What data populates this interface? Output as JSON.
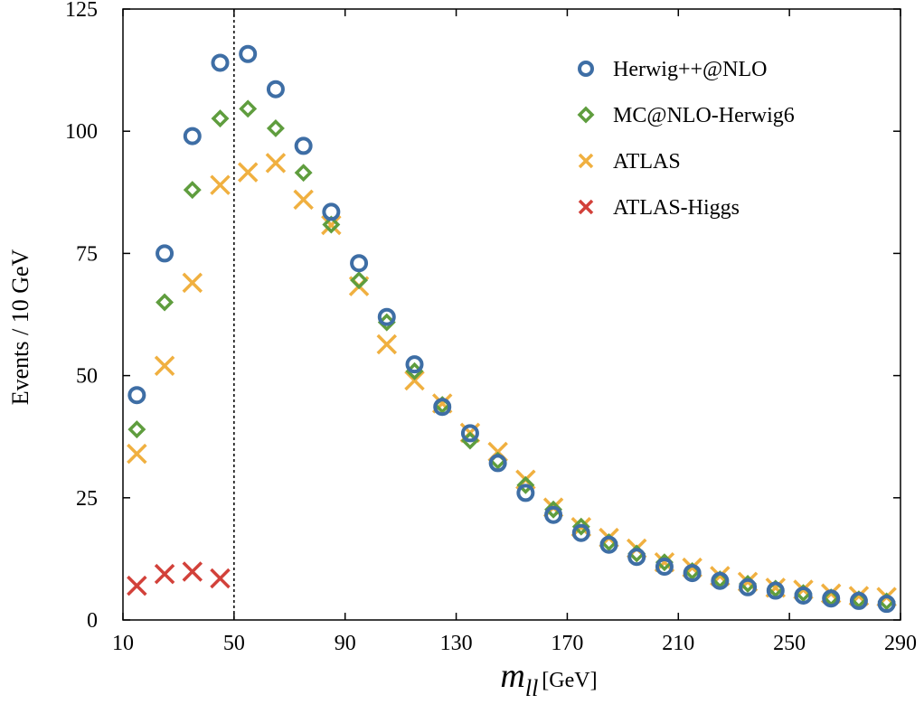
{
  "chart_data": {
    "type": "scatter",
    "xlabel_main": "m",
    "xlabel_sub": "ll",
    "xlabel_unit": "[GeV]",
    "ylabel": "Events / 10 GeV",
    "xlim": [
      10,
      290
    ],
    "ylim": [
      0,
      125
    ],
    "xticks": [
      10,
      50,
      90,
      130,
      170,
      210,
      250,
      290
    ],
    "yticks": [
      0,
      25,
      50,
      75,
      100,
      125
    ],
    "cut_line_x": 50,
    "legend_position": "top-right",
    "series": [
      {
        "name": "Herwig++@NLO",
        "marker": "circle",
        "color": "#3e6ea5",
        "x": [
          15,
          25,
          35,
          45,
          55,
          65,
          75,
          85,
          95,
          105,
          115,
          125,
          135,
          145,
          155,
          165,
          175,
          185,
          195,
          205,
          215,
          225,
          235,
          245,
          255,
          265,
          275,
          285
        ],
        "y": [
          46,
          75,
          99,
          114,
          115.8,
          108.6,
          97,
          83.5,
          73,
          62,
          52.3,
          43.6,
          38.2,
          32.1,
          26,
          21.5,
          17.8,
          15.4,
          12.9,
          10.9,
          9.6,
          8,
          6.7,
          6,
          5,
          4.4,
          3.9,
          3.3
        ]
      },
      {
        "name": "MC@NLO-Herwig6",
        "marker": "diamond",
        "color": "#5f9d3e",
        "x": [
          15,
          25,
          35,
          45,
          55,
          65,
          75,
          85,
          95,
          105,
          115,
          125,
          135,
          145,
          155,
          165,
          175,
          185,
          195,
          205,
          215,
          225,
          235,
          245,
          255,
          265,
          275,
          285
        ],
        "y": [
          39,
          65,
          88,
          102.6,
          104.6,
          100.6,
          91.5,
          80.9,
          69.5,
          60.9,
          50.9,
          44,
          36.7,
          32.6,
          27.6,
          22.6,
          19.1,
          15.9,
          13.6,
          11.8,
          10,
          8.3,
          7.4,
          6.4,
          5.5,
          4.6,
          4.2,
          3.8
        ]
      },
      {
        "name": "ATLAS",
        "marker": "cross",
        "color": "#f0b040",
        "x": [
          15,
          25,
          35,
          45,
          55,
          65,
          75,
          85,
          95,
          105,
          115,
          125,
          135,
          145,
          155,
          165,
          175,
          185,
          195,
          205,
          215,
          225,
          235,
          245,
          255,
          265,
          275,
          285
        ],
        "y": [
          34,
          52,
          69,
          89,
          91.6,
          93.5,
          86,
          80.8,
          68.3,
          56.4,
          49,
          44.3,
          38.3,
          34.4,
          28.7,
          23,
          19,
          16.8,
          14.6,
          11.8,
          10.7,
          9,
          7.8,
          6.6,
          6.2,
          5.4,
          4.9,
          4.7
        ]
      },
      {
        "name": "ATLAS-Higgs",
        "marker": "cross",
        "color": "#d2413a",
        "x": [
          15,
          25,
          35,
          45
        ],
        "y": [
          7,
          9.4,
          9.9,
          8.5
        ]
      }
    ]
  }
}
